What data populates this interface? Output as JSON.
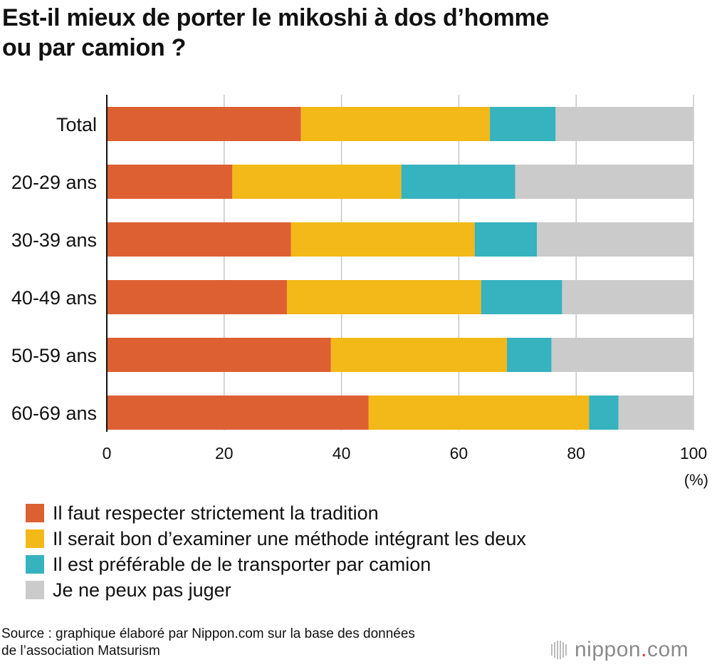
{
  "title_lines": [
    "Est-il mieux de porter le mikoshi à dos d’homme",
    "ou par camion ?"
  ],
  "chart_data": {
    "type": "bar",
    "orientation": "horizontal",
    "stacked": true,
    "title": "Est-il mieux de porter le mikoshi à dos d’homme ou par camion ?",
    "categories": [
      "Total",
      "20-29 ans",
      "30-39 ans",
      "40-49 ans",
      "50-59 ans",
      "60-69 ans"
    ],
    "series": [
      {
        "name": "Il faut respecter strictement la tradition",
        "color": "#dd6033",
        "values": [
          33.1,
          21.4,
          31.4,
          30.7,
          38.2,
          44.6
        ]
      },
      {
        "name": "Il serait bon d’examiner une méthode intégrant les deux",
        "color": "#f2b918",
        "values": [
          32.2,
          28.8,
          31.3,
          33.1,
          30.0,
          37.6
        ]
      },
      {
        "name": "Il est préférable de le transporter par camion",
        "color": "#37b2bf",
        "values": [
          11.2,
          19.4,
          10.6,
          13.8,
          7.6,
          5.0
        ]
      },
      {
        "name": "Je ne peux pas juger",
        "color": "#cbcbcb",
        "values": [
          23.5,
          30.4,
          26.7,
          22.4,
          24.2,
          12.8
        ]
      }
    ],
    "xlim": [
      0,
      100
    ],
    "xticks": [
      "0",
      "20",
      "40",
      "60",
      "80",
      "100"
    ],
    "xunit": "(%)",
    "grid": true,
    "legend_position": "bottom"
  },
  "source_lines": [
    "Source : graphique élaboré par Nippon.com sur la base des données",
    "de l’association Matsurism"
  ],
  "logo": {
    "name": "nippon",
    "dot": ".",
    "tld": "com"
  }
}
